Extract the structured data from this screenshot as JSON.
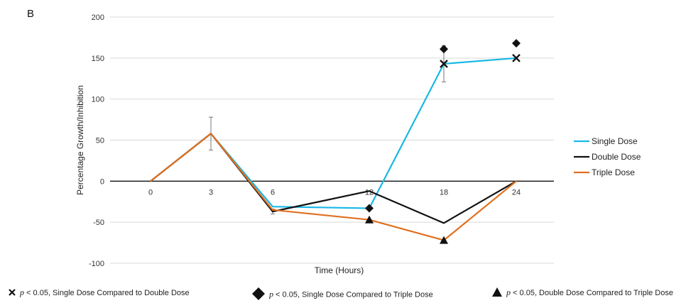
{
  "panel_label": "B",
  "chart_data": {
    "type": "line",
    "xlabel": "Time (Hours)",
    "ylabel": "Percentage Growth/Inhibition",
    "categories": [
      "0",
      "3",
      "6",
      "12",
      "18",
      "24"
    ],
    "ylim": [
      -100,
      200
    ],
    "yticks": [
      -100,
      -50,
      0,
      50,
      100,
      150,
      200
    ],
    "grid": true,
    "legend_position": "right",
    "series": [
      {
        "name": "Single Dose",
        "color": "#19b8e6",
        "values": [
          0,
          58,
          -31,
          -33,
          143,
          150
        ],
        "error": [
          null,
          20,
          null,
          null,
          22,
          null
        ]
      },
      {
        "name": "Double Dose",
        "color": "#111111",
        "values": [
          0,
          58,
          -37,
          -12,
          -51,
          0
        ],
        "error": [
          null,
          null,
          3,
          null,
          null,
          null
        ]
      },
      {
        "name": "Triple Dose",
        "color": "#e0701f",
        "values": [
          0,
          58,
          -35,
          -47,
          -72,
          0
        ],
        "error": [
          null,
          null,
          null,
          null,
          null,
          null
        ]
      }
    ],
    "significance_markers": [
      {
        "symbol": "x",
        "x": "18",
        "y": 143
      },
      {
        "symbol": "x",
        "x": "24",
        "y": 150
      },
      {
        "symbol": "diamond",
        "x": "12",
        "y": -33
      },
      {
        "symbol": "diamond",
        "x": "18",
        "y": 161
      },
      {
        "symbol": "diamond",
        "x": "24",
        "y": 168
      },
      {
        "symbol": "triangle",
        "x": "12",
        "y": -47
      },
      {
        "symbol": "triangle",
        "x": "18",
        "y": -72
      }
    ]
  },
  "footnotes": [
    {
      "symbol": "x",
      "p": "p",
      "text": " < 0.05, Single Dose Compared to Double Dose"
    },
    {
      "symbol": "diamond",
      "p": "p",
      "text": " < 0.05, Single Dose Compared to Triple Dose"
    },
    {
      "symbol": "triangle",
      "p": "p",
      "text": " < 0.05, Double Dose Compared to Triple Dose"
    }
  ]
}
